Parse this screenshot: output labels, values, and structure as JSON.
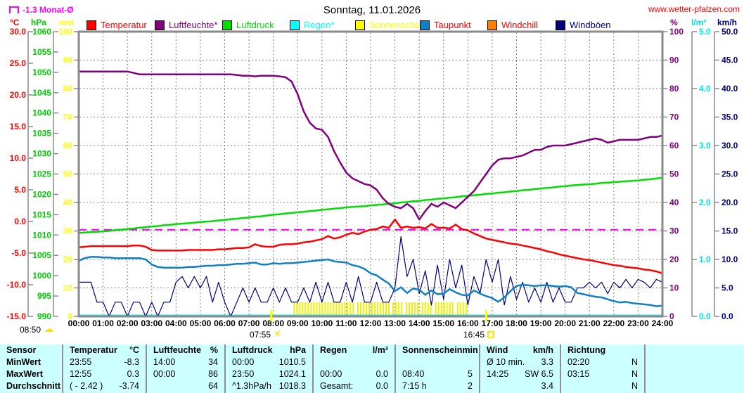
{
  "header": {
    "monat_avg": "-1.3 Monat-Ø",
    "title": "Sonntag, 11.01.2026",
    "site": "www.wetter-pfalzen.com"
  },
  "axis_units": {
    "left": [
      "°C",
      "hPa",
      "min"
    ],
    "right": [
      "%",
      "l/m²",
      "km/h"
    ]
  },
  "legend": [
    {
      "label": "Temperatur",
      "box": "#ff0000",
      "text": "#ff0000"
    },
    {
      "label": "Luftfeuchte*",
      "box": "#800080",
      "text": "#800080"
    },
    {
      "label": "Luftdruck",
      "box": "#00dd00",
      "text": "#00dd00"
    },
    {
      "label": "Regen*",
      "box": "#00ffff",
      "text": "#00ffff"
    },
    {
      "label": "Sonnenschein",
      "box": "#ffff00",
      "text": "#ffff00"
    },
    {
      "label": "Taupunkt",
      "box": "#1080c0",
      "text": "#ff0000"
    },
    {
      "label": "Windchill",
      "box": "#ff8000",
      "text": "#ff0000"
    },
    {
      "label": "Windböen",
      "box": "#000080",
      "text": "#000080"
    }
  ],
  "sun_events": {
    "sunrise": "07:55",
    "sunset": "16:45",
    "moon": "08:50"
  },
  "chart_data": {
    "type": "line",
    "title": "Sonntag, 11.01.2026",
    "x_unit": "hours",
    "x_range": [
      0,
      24
    ],
    "x_ticks": [
      "00:00",
      "01:00",
      "02:00",
      "03:00",
      "04:00",
      "05:00",
      "06:00",
      "07:00",
      "08:00",
      "09:00",
      "10:00",
      "11:00",
      "12:00",
      "13:00",
      "14:00",
      "15:00",
      "16:00",
      "17:00",
      "18:00",
      "19:00",
      "20:00",
      "21:00",
      "22:00",
      "23:00",
      "24:00"
    ],
    "grid": true,
    "monthly_avg_c": -1.3,
    "monthly_avg_color": "#ff00ff",
    "axes": {
      "temp_c": {
        "min": -15,
        "max": 30,
        "color": "#ff0000",
        "ticks": [
          "30.0",
          "25.0",
          "20.0",
          "15.0",
          "10.0",
          "5.0",
          "0.0",
          "-5.0",
          "-10.0",
          "-15.0"
        ]
      },
      "hpa": {
        "min": 990,
        "max": 1060,
        "color": "#00cc00",
        "ticks": [
          "1060",
          "1055",
          "1050",
          "1045",
          "1040",
          "1035",
          "1030",
          "1025",
          "1020",
          "1015",
          "1010",
          "1005",
          "1000",
          "995",
          "990"
        ]
      },
      "min": {
        "min": 0,
        "max": 100,
        "color": "#ffff00",
        "ticks": [
          "100",
          "90",
          "80",
          "70",
          "60",
          "50",
          "40",
          "30",
          "20",
          "10",
          "0"
        ]
      },
      "percent": {
        "min": 0,
        "max": 100,
        "color": "#800080",
        "ticks": [
          "100",
          "90",
          "80",
          "70",
          "60",
          "50",
          "40",
          "30",
          "20",
          "10",
          "0"
        ]
      },
      "lm2": {
        "min": 0,
        "max": 5,
        "color": "#00e0e0",
        "ticks": [
          "5.0",
          "4.0",
          "3.0",
          "2.0",
          "1.0",
          "0.0"
        ]
      },
      "kmh": {
        "min": 0,
        "max": 50,
        "color": "#000080",
        "ticks": [
          "50.0",
          "45.0",
          "40.0",
          "35.0",
          "30.0",
          "25.0",
          "20.0",
          "15.0",
          "10.0",
          "5.0",
          "0.0"
        ]
      }
    },
    "series": [
      {
        "name": "Luftfeuchte",
        "axis": "percent",
        "color": "#800080",
        "width": 2.5,
        "step": 0.25,
        "values": [
          86,
          86,
          86,
          86,
          86,
          86,
          86,
          86,
          86,
          85.5,
          85,
          85,
          85,
          85,
          85,
          85,
          85,
          85,
          85,
          85,
          85,
          85,
          85,
          85,
          85,
          85,
          84.8,
          84.5,
          84.5,
          84.3,
          84.5,
          84.5,
          84.5,
          84.3,
          84,
          82.5,
          78,
          72,
          68,
          66,
          65.5,
          63,
          58,
          54,
          50.5,
          48.5,
          47.5,
          46.5,
          46,
          44.5,
          41.5,
          39.5,
          38.5,
          38,
          39.5,
          38,
          34,
          37,
          39.5,
          38.5,
          40,
          39,
          38,
          40,
          42,
          44,
          47,
          50,
          53,
          55,
          55.5,
          55.5,
          56,
          56.5,
          57.5,
          58.5,
          58.5,
          59.5,
          60,
          60,
          60,
          60.5,
          61,
          61.5,
          62,
          62.5,
          62,
          61,
          61.5,
          62,
          62,
          62,
          62,
          62.5,
          63,
          63,
          63.5
        ]
      },
      {
        "name": "Luftdruck",
        "axis": "hpa",
        "color": "#00dd00",
        "width": 2.5,
        "step": 0.25,
        "values": [
          1010.5,
          1010.6,
          1010.7,
          1010.8,
          1010.9,
          1011.0,
          1011.2,
          1011.3,
          1011.5,
          1011.6,
          1011.8,
          1011.9,
          1012.1,
          1012.2,
          1012.4,
          1012.5,
          1012.7,
          1012.8,
          1012.9,
          1013.0,
          1013.2,
          1013.3,
          1013.4,
          1013.6,
          1013.7,
          1013.9,
          1014.0,
          1014.2,
          1014.3,
          1014.5,
          1014.6,
          1014.8,
          1015.0,
          1015.1,
          1015.3,
          1015.4,
          1015.6,
          1015.7,
          1015.9,
          1016.0,
          1016.2,
          1016.3,
          1016.5,
          1016.6,
          1016.8,
          1016.9,
          1017.0,
          1017.1,
          1017.3,
          1017.4,
          1017.5,
          1017.7,
          1017.8,
          1018.0,
          1018.1,
          1018.3,
          1018.4,
          1018.6,
          1018.7,
          1018.9,
          1019.0,
          1019.2,
          1019.3,
          1019.5,
          1019.6,
          1019.8,
          1019.9,
          1020.1,
          1020.2,
          1020.4,
          1020.5,
          1020.7,
          1020.8,
          1021.0,
          1021.1,
          1021.3,
          1021.4,
          1021.6,
          1021.7,
          1021.9,
          1022.0,
          1022.2,
          1022.3,
          1022.4,
          1022.5,
          1022.6,
          1022.8,
          1022.9,
          1023.0,
          1023.1,
          1023.2,
          1023.3,
          1023.4,
          1023.6,
          1023.7,
          1023.9,
          1024.1
        ]
      },
      {
        "name": "Temperatur",
        "axis": "temp_c",
        "color": "#ff0000",
        "width": 2.5,
        "step": 0.25,
        "values": [
          -4.1,
          -4.0,
          -3.9,
          -3.9,
          -3.9,
          -3.9,
          -3.9,
          -3.9,
          -3.9,
          -3.8,
          -3.8,
          -4.0,
          -4.5,
          -4.6,
          -4.6,
          -4.6,
          -4.6,
          -4.6,
          -4.5,
          -4.5,
          -4.5,
          -4.5,
          -4.5,
          -4.4,
          -4.4,
          -4.3,
          -4.2,
          -4.2,
          -4.1,
          -3.6,
          -3.9,
          -4.0,
          -4.0,
          -3.7,
          -3.6,
          -3.6,
          -3.5,
          -3.3,
          -3.2,
          -3.0,
          -2.8,
          -2.3,
          -2.7,
          -2.5,
          -2.1,
          -1.8,
          -2.0,
          -1.6,
          -1.3,
          -1.2,
          -0.8,
          -1.0,
          0.3,
          -1.0,
          -0.8,
          -1.0,
          -0.9,
          -1.1,
          -0.4,
          -1.0,
          -1.0,
          -1.1,
          -0.5,
          -1.2,
          -1.4,
          -1.9,
          -2.3,
          -2.7,
          -2.9,
          -3.1,
          -3.3,
          -3.5,
          -3.6,
          -3.8,
          -4.0,
          -4.2,
          -4.4,
          -4.7,
          -4.9,
          -5.2,
          -5.4,
          -5.6,
          -5.8,
          -6.0,
          -6.1,
          -6.3,
          -6.5,
          -6.7,
          -6.9,
          -7.0,
          -7.2,
          -7.3,
          -7.4,
          -7.6,
          -7.7,
          -7.9,
          -8.2
        ]
      },
      {
        "name": "Taupunkt",
        "axis": "temp_c",
        "color": "#1080c0",
        "width": 2.5,
        "step": 0.25,
        "values": [
          -6.2,
          -5.8,
          -5.6,
          -5.6,
          -5.7,
          -5.7,
          -5.8,
          -5.8,
          -5.8,
          -5.8,
          -5.8,
          -6.0,
          -6.8,
          -7.2,
          -7.3,
          -7.3,
          -7.3,
          -7.3,
          -7.2,
          -7.2,
          -7.1,
          -7.0,
          -7.0,
          -6.9,
          -6.9,
          -6.8,
          -6.7,
          -6.7,
          -6.6,
          -6.5,
          -6.8,
          -6.8,
          -6.6,
          -6.7,
          -6.6,
          -6.6,
          -6.5,
          -6.4,
          -6.3,
          -6.2,
          -6.1,
          -6.0,
          -6.3,
          -6.4,
          -6.5,
          -6.9,
          -7.1,
          -7.5,
          -8.2,
          -8.5,
          -9.2,
          -9.8,
          -11.0,
          -10.4,
          -11.3,
          -10.6,
          -10.8,
          -11.6,
          -10.9,
          -11.5,
          -11.4,
          -10.7,
          -11.2,
          -11.6,
          -11.7,
          -10.9,
          -11.4,
          -11.8,
          -12.1,
          -12.7,
          -12.0,
          -11.0,
          -10.2,
          -10.0,
          -10.1,
          -10.2,
          -10.1,
          -10.1,
          -10.2,
          -10.3,
          -10.2,
          -10.4,
          -11.3,
          -11.5,
          -11.7,
          -11.9,
          -12.0,
          -12.3,
          -12.6,
          -12.8,
          -12.7,
          -12.9,
          -13.0,
          -13.1,
          -13.2,
          -13.4,
          -13.3
        ]
      },
      {
        "name": "Windböen",
        "axis": "kmh",
        "color": "#000080",
        "width": 1.2,
        "step": 0.25,
        "values": [
          6,
          6,
          6,
          2.5,
          2.5,
          0,
          2.5,
          2.5,
          0,
          2.5,
          2.5,
          0,
          2.5,
          0,
          2.5,
          2.5,
          6,
          7,
          5,
          7,
          5,
          7,
          2.5,
          6,
          2.5,
          0,
          2.5,
          5,
          2.5,
          5,
          2.5,
          2.5,
          5,
          2.5,
          5,
          2.5,
          2.5,
          5,
          2.5,
          6,
          2.5,
          6,
          2.5,
          2.5,
          6,
          2.5,
          7,
          2.5,
          2.5,
          6,
          2.5,
          2.5,
          5,
          14,
          7,
          10,
          4,
          8,
          2,
          9,
          3,
          10,
          5,
          9,
          2,
          7,
          4,
          10,
          6,
          10,
          2,
          7,
          3,
          6,
          2.5,
          5,
          2.5,
          6,
          2.5,
          5,
          2.5,
          2.5,
          5,
          5,
          6,
          5,
          6,
          4,
          6,
          5,
          6.5,
          5,
          6.5,
          6,
          5,
          6.5,
          6
        ]
      },
      {
        "name": "Regen",
        "axis": "lm2",
        "color": "#00ffff",
        "width": 2,
        "constant": 0
      }
    ],
    "sunshine": {
      "name": "Sonnenschein",
      "axis": "min",
      "color": "#eef000",
      "bar_value": 5,
      "segments": [
        [
          8.83,
          11.33
        ],
        [
          11.45,
          12.8
        ],
        [
          12.9,
          13.3
        ],
        [
          13.45,
          14.0
        ],
        [
          14.1,
          14.55
        ],
        [
          14.65,
          15.45
        ],
        [
          15.55,
          16.0
        ]
      ]
    },
    "sun_marks": {
      "sunrise_h": 7.917,
      "sunset_h": 16.75,
      "color": "#ffff00"
    }
  },
  "table": {
    "sensor_header": "Sensor",
    "row_labels": [
      "MinWert",
      "MaxWert",
      "Durchschnitt"
    ],
    "columns": [
      {
        "header": "Temperatur",
        "unit": "°C",
        "rows": [
          [
            "23:55",
            "-8.3"
          ],
          [
            "12:55",
            "0.3"
          ],
          [
            "( - 2.42 )",
            "-3.74"
          ]
        ]
      },
      {
        "header": "Luftfeuchte",
        "unit": "%",
        "rows": [
          [
            "14:00",
            "34"
          ],
          [
            "00:00",
            "86"
          ],
          [
            "",
            "64"
          ]
        ]
      },
      {
        "header": "Luftdruck",
        "unit": "hPa",
        "rows": [
          [
            "00:00",
            "1010.5"
          ],
          [
            "23:50",
            "1024.1"
          ],
          [
            "^1.3hPa/h",
            "1018.3"
          ]
        ]
      },
      {
        "header": "Regen",
        "unit": "l/m²",
        "rows": [
          [
            "",
            ""
          ],
          [
            "00:00",
            "0.0"
          ],
          [
            "Gesamt:",
            "0.0"
          ]
        ]
      },
      {
        "header": "Sonnenschein",
        "unit": "min",
        "rows": [
          [
            "",
            ""
          ],
          [
            "08:40",
            "5"
          ],
          [
            "7:15 h",
            "2"
          ]
        ]
      },
      {
        "header": "Wind",
        "unit": "km/h",
        "rows": [
          [
            "Ø 10 min.",
            "3.3"
          ],
          [
            "14:25",
            "SW 6.5"
          ],
          [
            "",
            "3.4"
          ]
        ]
      },
      {
        "header": "Richtung",
        "unit": "",
        "rows": [
          [
            "02:20",
            "N"
          ],
          [
            "03:15",
            "N"
          ],
          [
            "",
            "N"
          ]
        ]
      }
    ]
  }
}
